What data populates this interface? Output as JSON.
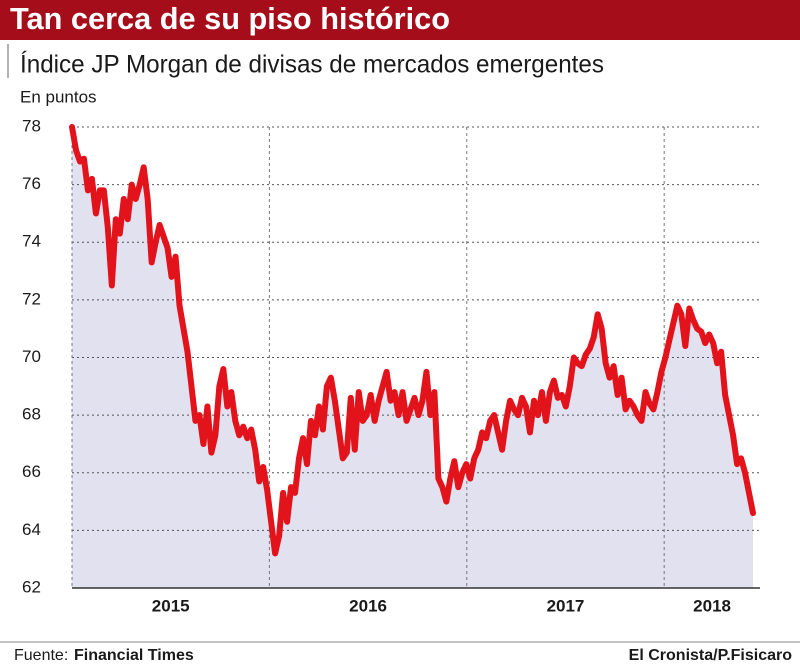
{
  "chart_data": {
    "type": "line",
    "title": "Tan cerca de su piso histórico",
    "subtitle": "Índice JP Morgan de divisas de mercados emergentes",
    "y_label": "En puntos",
    "source_label": "Fuente:",
    "source": "Financial Times",
    "credit": "El Cronista/P.Fisicaro",
    "color": "#e3131b",
    "area_color": "#e2e1f0",
    "xlim": [
      2015,
      2018.45
    ],
    "xticks": [
      2015,
      2016,
      2017,
      2018
    ],
    "ylim": [
      62,
      78
    ],
    "yticks": [
      62,
      64,
      66,
      68,
      70,
      72,
      74,
      76,
      78
    ],
    "grid": true,
    "values": [
      78.0,
      77.2,
      76.8,
      76.9,
      75.8,
      76.2,
      75.0,
      75.8,
      75.8,
      74.5,
      72.5,
      74.8,
      74.3,
      75.5,
      74.8,
      76.0,
      75.5,
      76.0,
      76.6,
      75.5,
      73.3,
      74.0,
      74.6,
      74.2,
      73.8,
      72.8,
      73.5,
      71.8,
      71.0,
      70.2,
      69.0,
      67.8,
      68.0,
      67.0,
      68.3,
      66.7,
      67.3,
      69.0,
      69.6,
      68.3,
      68.8,
      67.8,
      67.3,
      67.6,
      67.2,
      67.5,
      66.8,
      65.7,
      66.2,
      65.4,
      64.3,
      63.2,
      63.8,
      65.3,
      64.3,
      65.5,
      65.3,
      66.5,
      67.2,
      66.3,
      67.8,
      67.3,
      68.3,
      67.5,
      69.0,
      69.3,
      68.5,
      67.5,
      66.5,
      66.7,
      68.6,
      66.8,
      68.8,
      67.8,
      68.0,
      68.7,
      67.8,
      68.5,
      69.0,
      69.5,
      68.5,
      68.8,
      68.0,
      68.8,
      67.8,
      68.2,
      68.6,
      68.0,
      68.5,
      69.5,
      68.0,
      68.8,
      65.8,
      65.5,
      65.0,
      65.8,
      66.4,
      65.5,
      66.0,
      66.3,
      65.8,
      66.5,
      66.8,
      67.4,
      67.2,
      67.8,
      68.0,
      67.4,
      66.8,
      67.8,
      68.5,
      68.2,
      68.0,
      68.6,
      68.3,
      67.4,
      68.5,
      68.0,
      68.8,
      67.8,
      68.8,
      69.2,
      68.6,
      68.7,
      68.3,
      69.0,
      70.0,
      69.8,
      69.7,
      70.1,
      70.3,
      70.7,
      71.5,
      71.0,
      69.8,
      69.3,
      69.7,
      68.7,
      69.3,
      68.2,
      68.5,
      68.3,
      68.0,
      67.8,
      68.8,
      68.4,
      68.2,
      68.8,
      69.5,
      70.0,
      70.6,
      71.2,
      71.8,
      71.5,
      70.4,
      71.7,
      71.3,
      71.0,
      70.9,
      70.5,
      70.8,
      70.5,
      69.8,
      70.2,
      68.7,
      68.0,
      67.3,
      66.3,
      66.5,
      66.0,
      65.3,
      64.6
    ]
  }
}
